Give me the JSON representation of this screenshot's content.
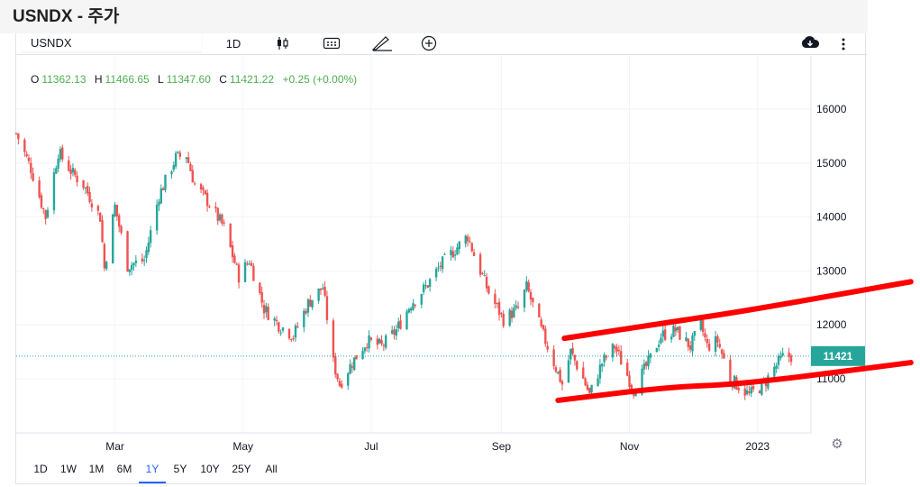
{
  "page": {
    "title": "USNDX - 주가"
  },
  "toolbar": {
    "symbol": "USNDX",
    "interval": "1D",
    "icons": [
      "candles-icon",
      "indicators-icon",
      "drawing-icon",
      "add-compare-icon",
      "snapshot-icon",
      "more-options-icon"
    ]
  },
  "ohlc": {
    "o_label": "O",
    "o": "11362.13",
    "h_label": "H",
    "h": "11466.65",
    "l_label": "L",
    "l": "11347.60",
    "c_label": "C",
    "c": "11421.22",
    "change": "+0.25 (+0.00%)",
    "colors": {
      "label": "#131722",
      "value": "#4caf50"
    }
  },
  "range_buttons": {
    "items": [
      "1D",
      "1W",
      "1M",
      "6M",
      "1Y",
      "5Y",
      "10Y",
      "25Y",
      "All"
    ],
    "active": "1Y"
  },
  "colors": {
    "up": "#26a69a",
    "down": "#ef5350",
    "annotation": "#ff0000",
    "grid": "#f0f3fa",
    "price_label": "#26a69a"
  },
  "chart_data": {
    "type": "candlestick",
    "x_labels": [
      "Mar",
      "May",
      "Jul",
      "Sep",
      "Nov",
      "2023"
    ],
    "y_ticks": [
      "16000",
      "15000",
      "14000",
      "13000",
      "12000",
      "11000"
    ],
    "ylim": [
      10600,
      16300
    ],
    "last_price": 11421,
    "last_price_label": "11421",
    "grid": true,
    "close_path": [
      [
        "2022-01-13",
        15550
      ],
      [
        "2022-01-20",
        14900
      ],
      [
        "2022-01-27",
        14000
      ],
      [
        "2022-02-02",
        15200
      ],
      [
        "2022-02-09",
        14800
      ],
      [
        "2022-02-14",
        14600
      ],
      [
        "2022-02-22",
        14000
      ],
      [
        "2022-02-24",
        13050
      ],
      [
        "2022-03-01",
        14200
      ],
      [
        "2022-03-07",
        13100
      ],
      [
        "2022-03-15",
        13200
      ],
      [
        "2022-03-22",
        14400
      ],
      [
        "2022-03-30",
        15100
      ],
      [
        "2022-04-04",
        15150
      ],
      [
        "2022-04-08",
        14600
      ],
      [
        "2022-04-14",
        14300
      ],
      [
        "2022-04-22",
        13800
      ],
      [
        "2022-04-29",
        12900
      ],
      [
        "2022-05-04",
        13200
      ],
      [
        "2022-05-11",
        12300
      ],
      [
        "2022-05-18",
        12000
      ],
      [
        "2022-05-25",
        11800
      ],
      [
        "2022-06-01",
        12400
      ],
      [
        "2022-06-08",
        12700
      ],
      [
        "2022-06-13",
        11300
      ],
      [
        "2022-06-16",
        10900
      ],
      [
        "2022-06-22",
        11300
      ],
      [
        "2022-06-29",
        11700
      ],
      [
        "2022-07-06",
        11600
      ],
      [
        "2022-07-13",
        11900
      ],
      [
        "2022-07-20",
        12400
      ],
      [
        "2022-07-27",
        12700
      ],
      [
        "2022-08-03",
        13100
      ],
      [
        "2022-08-10",
        13400
      ],
      [
        "2022-08-16",
        13650
      ],
      [
        "2022-08-19",
        13300
      ],
      [
        "2022-08-26",
        12600
      ],
      [
        "2022-09-02",
        12100
      ],
      [
        "2022-09-09",
        12300
      ],
      [
        "2022-09-13",
        12700
      ],
      [
        "2022-09-20",
        11900
      ],
      [
        "2022-09-26",
        11300
      ],
      [
        "2022-09-30",
        10900
      ],
      [
        "2022-10-04",
        11500
      ],
      [
        "2022-10-10",
        11000
      ],
      [
        "2022-10-13",
        10700
      ],
      [
        "2022-10-19",
        11300
      ],
      [
        "2022-10-25",
        11600
      ],
      [
        "2022-11-03",
        10800
      ],
      [
        "2022-11-10",
        11300
      ],
      [
        "2022-11-16",
        11800
      ],
      [
        "2022-11-23",
        11900
      ],
      [
        "2022-11-30",
        11600
      ],
      [
        "2022-12-05",
        12000
      ],
      [
        "2022-12-08",
        11600
      ],
      [
        "2022-12-13",
        11700
      ],
      [
        "2022-12-19",
        11000
      ],
      [
        "2022-12-28",
        10700
      ],
      [
        "2023-01-04",
        10900
      ],
      [
        "2023-01-09",
        11200
      ],
      [
        "2023-01-13",
        11400
      ],
      [
        "2023-01-17",
        11421
      ]
    ],
    "annotations": [
      {
        "type": "hand-drawn-trend-line",
        "points": [
          [
            "2022-10-01",
            11750
          ],
          [
            "2022-11-20",
            12050
          ],
          [
            "2022-12-25",
            12250
          ],
          [
            "2023-03-15",
            12800
          ]
        ]
      },
      {
        "type": "hand-drawn-trend-line",
        "points": [
          [
            "2022-09-28",
            10600
          ],
          [
            "2022-11-20",
            10850
          ],
          [
            "2022-12-25",
            10900
          ],
          [
            "2023-03-15",
            11300
          ]
        ]
      }
    ]
  }
}
